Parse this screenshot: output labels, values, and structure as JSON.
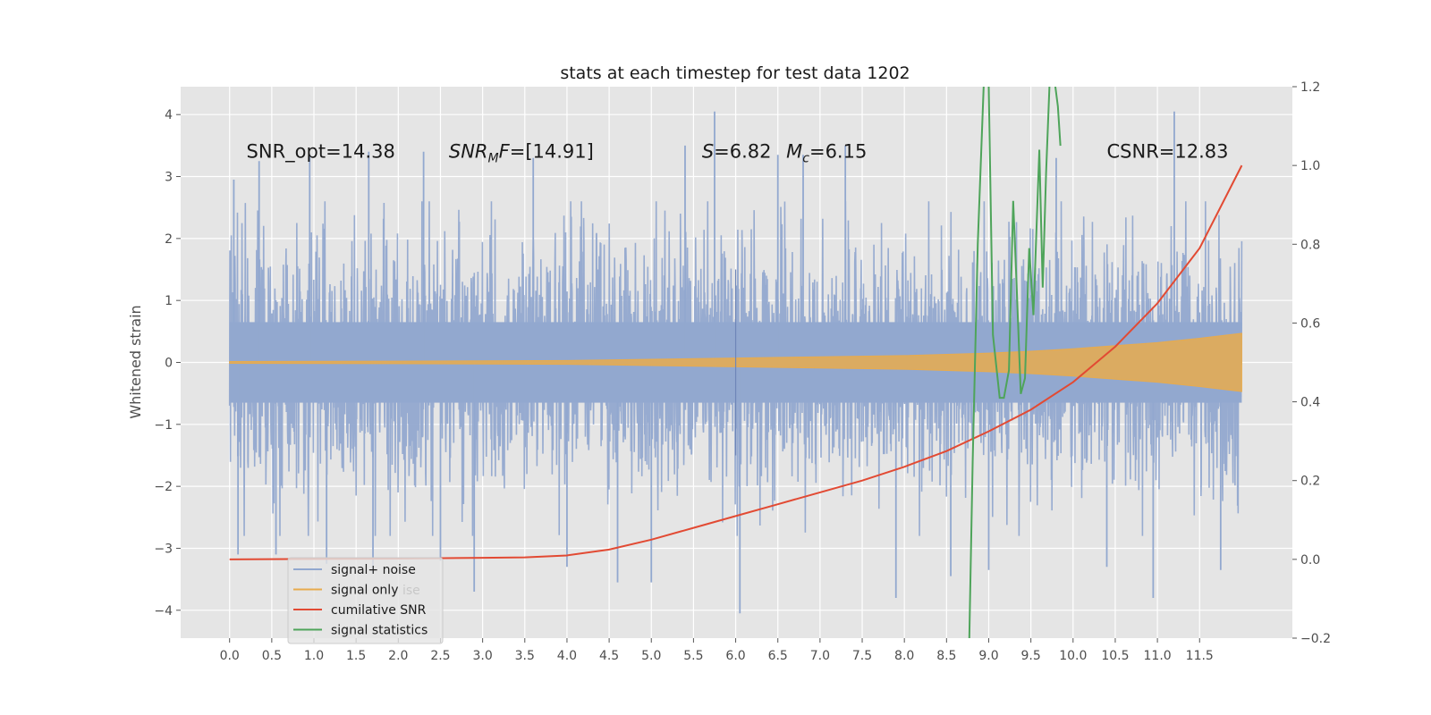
{
  "chart_data": {
    "type": "line",
    "title": "stats at each timestep for test data 1202",
    "ylabel": "Whitened strain",
    "xlabel": "",
    "xlim": [
      -0.58,
      12.6
    ],
    "ylim": [
      -4.45,
      4.45
    ],
    "y2lim": [
      -0.2,
      1.2
    ],
    "x_ticks": [
      0.0,
      0.5,
      1.0,
      1.5,
      2.0,
      2.5,
      3.0,
      3.5,
      4.0,
      4.5,
      5.0,
      5.5,
      6.0,
      6.5,
      7.0,
      7.5,
      8.0,
      8.5,
      9.0,
      9.5,
      10.0,
      10.5,
      11.0,
      11.5
    ],
    "x_tick_labels": [
      "0.0",
      "0.5",
      "1.0",
      "1.5",
      "2.0",
      "2.5",
      "3.0",
      "3.5",
      "4.0",
      "4.5",
      "5.0",
      "5.5",
      "6.0",
      "6.5",
      "7.0",
      "7.5",
      "8.0",
      "8.5",
      "9.0",
      "9.5",
      "10.0",
      "10.5",
      "11.0",
      "11.5"
    ],
    "y_ticks": [
      -4,
      -3,
      -2,
      -1,
      0,
      1,
      2,
      3,
      4
    ],
    "y_tick_labels": [
      "−4",
      "−3",
      "−2",
      "−1",
      "0",
      "1",
      "2",
      "3",
      "4"
    ],
    "y2_ticks": [
      -0.2,
      0.0,
      0.2,
      0.4,
      0.6,
      0.8,
      1.0,
      1.2
    ],
    "y2_tick_labels": [
      "−0.2",
      "0.0",
      "0.2",
      "0.4",
      "0.6",
      "0.8",
      "1.0",
      "1.2"
    ],
    "grid": true,
    "background": "#e5e5e5",
    "annotations": [
      {
        "text": "SNR_opt=14.38",
        "x": 0.2,
        "y": 3.3
      },
      {
        "text": "SNRₘF=[14.91]",
        "x": 2.6,
        "y": 3.3,
        "parts": [
          {
            "t": "SNR",
            "italic": true
          },
          {
            "t": "M",
            "italic": true,
            "sub": true
          },
          {
            "t": "F",
            "italic": true
          },
          {
            "t": "=[14.91]"
          }
        ]
      },
      {
        "text": "S=6.82",
        "x": 5.6,
        "y": 3.3,
        "parts": [
          {
            "t": "S",
            "italic": true
          },
          {
            "t": "=6.82"
          }
        ]
      },
      {
        "text": "Mc=6.15",
        "x": 6.6,
        "y": 3.3,
        "parts": [
          {
            "t": "M",
            "italic": true
          },
          {
            "t": "c",
            "italic": true,
            "sub": true
          },
          {
            "t": "=6.15"
          }
        ]
      },
      {
        "text": "CSNR=12.83",
        "x": 10.4,
        "y": 3.3
      }
    ],
    "legend": {
      "placement": "lower-left",
      "entries": [
        "signal+ noise",
        "signal only",
        "cumilative SNR",
        "signal statistics"
      ],
      "ghost_text": [
        "noise",
        "ise"
      ]
    },
    "series": [
      {
        "name": "signal+ noise",
        "color": "#92a8cf",
        "axis": "left",
        "kind": "noise",
        "x_range": [
          0.0,
          12.0
        ],
        "typical_range": [
          -1.9,
          1.9
        ],
        "dense_band": [
          -0.65,
          0.65
        ],
        "peak_range": [
          -4.05,
          4.1
        ],
        "spikes": [
          {
            "x": 0.05,
            "y": 2.95
          },
          {
            "x": 0.1,
            "y": -3.1
          },
          {
            "x": 0.35,
            "y": 3.25
          },
          {
            "x": 0.55,
            "y": -3.1
          },
          {
            "x": 0.95,
            "y": 3.35
          },
          {
            "x": 1.15,
            "y": -3.25
          },
          {
            "x": 1.65,
            "y": 3.4
          },
          {
            "x": 1.7,
            "y": -3.4
          },
          {
            "x": 2.3,
            "y": 3.4
          },
          {
            "x": 2.5,
            "y": -3.2
          },
          {
            "x": 2.9,
            "y": -3.7
          },
          {
            "x": 3.6,
            "y": 3.3
          },
          {
            "x": 4.0,
            "y": -3.3
          },
          {
            "x": 4.6,
            "y": -3.55
          },
          {
            "x": 5.0,
            "y": -3.55
          },
          {
            "x": 5.4,
            "y": 3.5
          },
          {
            "x": 5.75,
            "y": 4.05
          },
          {
            "x": 6.05,
            "y": -4.05
          },
          {
            "x": 6.5,
            "y": 3.35
          },
          {
            "x": 6.8,
            "y": 3.35
          },
          {
            "x": 7.3,
            "y": 3.5
          },
          {
            "x": 7.9,
            "y": -3.8
          },
          {
            "x": 8.55,
            "y": -3.45
          },
          {
            "x": 9.0,
            "y": -3.35
          },
          {
            "x": 9.8,
            "y": 3.3
          },
          {
            "x": 10.4,
            "y": -3.3
          },
          {
            "x": 10.95,
            "y": -3.8
          },
          {
            "x": 11.2,
            "y": 4.05
          },
          {
            "x": 11.75,
            "y": -3.35
          }
        ]
      },
      {
        "name": "signal only",
        "color": "#e8ab4d",
        "axis": "left",
        "kind": "envelope",
        "x": [
          0.0,
          2.0,
          4.0,
          5.0,
          6.0,
          7.0,
          8.0,
          8.5,
          9.0,
          9.5,
          10.0,
          10.5,
          11.0,
          11.5,
          12.0
        ],
        "amplitude": [
          0.015,
          0.02,
          0.03,
          0.05,
          0.07,
          0.09,
          0.11,
          0.13,
          0.15,
          0.18,
          0.22,
          0.27,
          0.32,
          0.39,
          0.47
        ]
      },
      {
        "name": "cumilative SNR",
        "color": "#e24a33",
        "axis": "right",
        "x": [
          0.0,
          1.0,
          2.0,
          3.0,
          3.5,
          4.0,
          4.5,
          5.0,
          5.5,
          6.0,
          6.5,
          7.0,
          7.5,
          8.0,
          8.5,
          9.0,
          9.5,
          10.0,
          10.5,
          11.0,
          11.5,
          12.0
        ],
        "values": [
          0.0,
          0.001,
          0.002,
          0.004,
          0.005,
          0.01,
          0.025,
          0.05,
          0.08,
          0.11,
          0.14,
          0.17,
          0.2,
          0.235,
          0.275,
          0.325,
          0.38,
          0.45,
          0.54,
          0.65,
          0.79,
          1.0
        ]
      },
      {
        "name": "signal statistics",
        "color": "#4ea45a",
        "axis": "right",
        "x": [
          8.77,
          8.81,
          8.87,
          8.94,
          8.98,
          9.0,
          9.05,
          9.13,
          9.18,
          9.24,
          9.29,
          9.33,
          9.38,
          9.43,
          9.48,
          9.53,
          9.6,
          9.64,
          9.68,
          9.72,
          9.75,
          9.79,
          9.82,
          9.85
        ],
        "values": [
          -0.2,
          0.25,
          0.8,
          1.2,
          1.23,
          1.2,
          0.57,
          0.41,
          0.41,
          0.48,
          0.91,
          0.7,
          0.42,
          0.46,
          0.79,
          0.62,
          1.04,
          0.69,
          0.98,
          1.2,
          1.22,
          1.2,
          1.15,
          1.05
        ]
      }
    ]
  }
}
